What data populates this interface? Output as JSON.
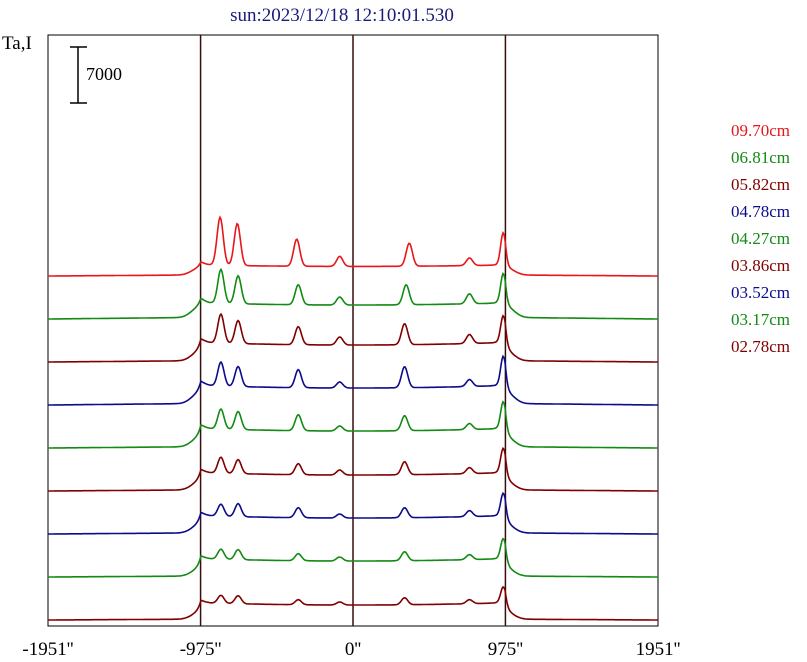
{
  "chart_data": {
    "type": "line",
    "title": "sun:2023/12/18 12:10:01.530",
    "ylabel": "Ta,I",
    "scale_bar_label": "7000",
    "x_ticks": [
      "-1951''",
      "-975''",
      "0''",
      "975''",
      "1951''"
    ],
    "x_range": [
      -1951,
      1951
    ],
    "vertical_markers": [
      -975,
      0,
      975
    ],
    "series": [
      {
        "name": "09.70cm",
        "color": "#e8161a",
        "edge": 650,
        "limb": 480,
        "peaks": [
          [
            -850,
            2400
          ],
          [
            -740,
            2100
          ],
          [
            -360,
            1350
          ],
          [
            -85,
            500
          ],
          [
            360,
            1150
          ],
          [
            745,
            380
          ],
          [
            960,
            1500
          ]
        ]
      },
      {
        "name": "06.81cm",
        "color": "#138a13",
        "edge": 1000,
        "limb": 700,
        "peaks": [
          [
            -845,
            1700
          ],
          [
            -735,
            1400
          ],
          [
            -350,
            1000
          ],
          [
            -85,
            400
          ],
          [
            340,
            1000
          ],
          [
            745,
            500
          ],
          [
            960,
            1300
          ]
        ]
      },
      {
        "name": "05.82cm",
        "color": "#800000",
        "edge": 800,
        "limb": 850,
        "peaks": [
          [
            -845,
            1450
          ],
          [
            -735,
            1150
          ],
          [
            -350,
            900
          ],
          [
            -85,
            400
          ],
          [
            330,
            1050
          ],
          [
            745,
            450
          ],
          [
            960,
            1200
          ]
        ]
      },
      {
        "name": "04.78cm",
        "color": "#0b0b8c",
        "edge": 950,
        "limb": 850,
        "peaks": [
          [
            -845,
            1200
          ],
          [
            -735,
            1000
          ],
          [
            -350,
            900
          ],
          [
            -85,
            300
          ],
          [
            330,
            1050
          ],
          [
            745,
            350
          ],
          [
            960,
            1300
          ]
        ]
      },
      {
        "name": "04.27cm",
        "color": "#138a13",
        "edge": 800,
        "limb": 850,
        "peaks": [
          [
            -845,
            1000
          ],
          [
            -735,
            900
          ],
          [
            -350,
            800
          ],
          [
            -85,
            250
          ],
          [
            330,
            750
          ],
          [
            745,
            300
          ],
          [
            960,
            1200
          ]
        ]
      },
      {
        "name": "03.86cm",
        "color": "#800000",
        "edge": 700,
        "limb": 800,
        "peaks": [
          [
            -845,
            800
          ],
          [
            -735,
            700
          ],
          [
            -350,
            550
          ],
          [
            -85,
            250
          ],
          [
            330,
            650
          ],
          [
            745,
            300
          ],
          [
            960,
            1100
          ]
        ]
      },
      {
        "name": "03.52cm",
        "color": "#0b0b8c",
        "edge": 700,
        "limb": 800,
        "peaks": [
          [
            -845,
            600
          ],
          [
            -735,
            650
          ],
          [
            -350,
            500
          ],
          [
            -85,
            200
          ],
          [
            330,
            500
          ],
          [
            745,
            300
          ],
          [
            960,
            1000
          ]
        ]
      },
      {
        "name": "03.17cm",
        "color": "#138a13",
        "edge": 600,
        "limb": 800,
        "peaks": [
          [
            -845,
            500
          ],
          [
            -735,
            500
          ],
          [
            -350,
            350
          ],
          [
            -85,
            200
          ],
          [
            330,
            450
          ],
          [
            745,
            250
          ],
          [
            960,
            900
          ]
        ]
      },
      {
        "name": "02.78cm",
        "color": "#800000",
        "edge": 550,
        "limb": 750,
        "peaks": [
          [
            -845,
            400
          ],
          [
            -735,
            400
          ],
          [
            -350,
            250
          ],
          [
            -85,
            150
          ],
          [
            330,
            350
          ],
          [
            745,
            200
          ],
          [
            960,
            700
          ]
        ]
      }
    ],
    "grid": false,
    "legend_position": "right"
  }
}
